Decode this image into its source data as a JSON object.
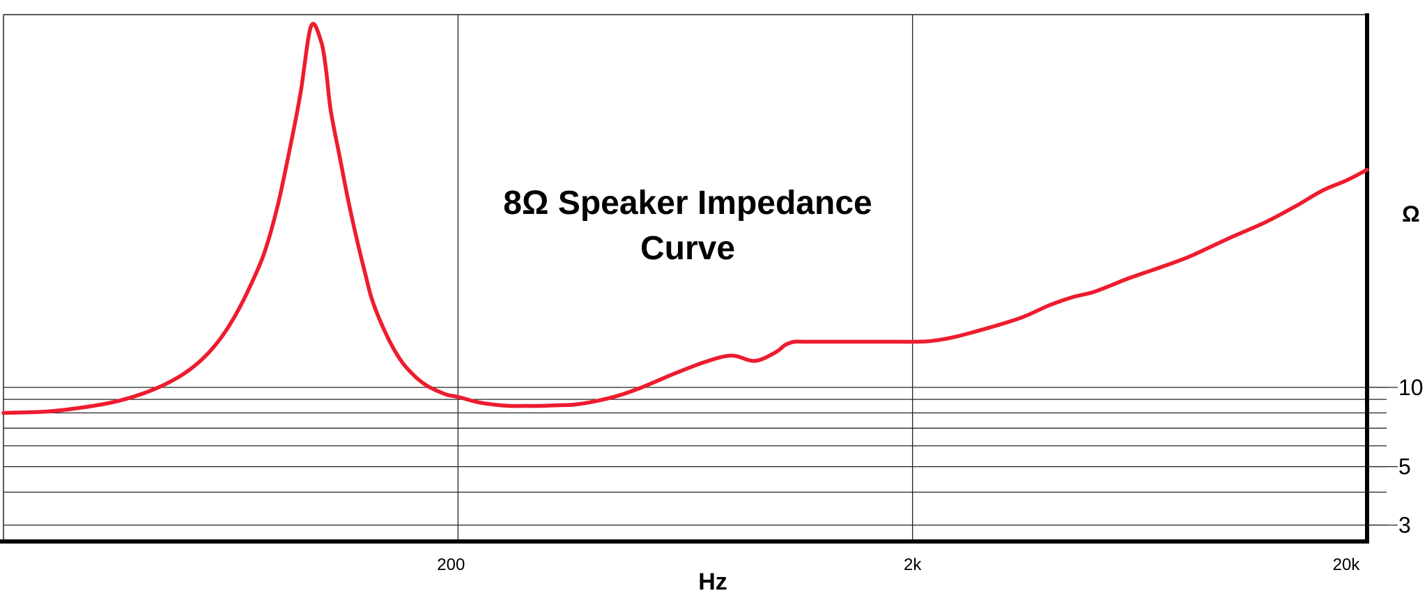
{
  "chart_data": {
    "type": "line",
    "title_lines": [
      "8Ω Speaker Impedance",
      "Curve"
    ],
    "xlabel": "Hz",
    "ylabel": "Ω",
    "x_scale": "log",
    "y_scale": "log",
    "xlim": [
      20,
      20000
    ],
    "ylim": [
      2.6,
      260
    ],
    "x_ticks": [
      {
        "value": 200,
        "label": "200"
      },
      {
        "value": 2000,
        "label": "2k"
      },
      {
        "value": 20000,
        "label": "20k"
      }
    ],
    "y_ticks": [
      {
        "value": 3,
        "label": "3"
      },
      {
        "value": 5,
        "label": "5"
      },
      {
        "value": 10,
        "label": "10"
      }
    ],
    "x_gridlines": [
      200,
      2000
    ],
    "y_gridlines": [
      3,
      4,
      5,
      6,
      7,
      8,
      9,
      10
    ],
    "series": [
      {
        "color": "#ee1c2e",
        "x": [
          20,
          25,
          30,
          35,
          40,
          45,
          50,
          55,
          60,
          65,
          70,
          75,
          80,
          85,
          90,
          95,
          100,
          102.5,
          105,
          110,
          115,
          120,
          125,
          130,
          140,
          150,
          160,
          170,
          180,
          190,
          200,
          220,
          240,
          260,
          280,
          300,
          330,
          360,
          400,
          450,
          500,
          550,
          600,
          700,
          800,
          900,
          1000,
          1050,
          1100,
          1150,
          1200,
          1300,
          1400,
          1500,
          1600,
          1700,
          1800,
          1900,
          2000,
          2200,
          2500,
          3000,
          3500,
          4000,
          4500,
          5000,
          5500,
          6000,
          7000,
          8000,
          9000,
          10000,
          12000,
          14000,
          16000,
          18000,
          20000
        ],
        "y": [
          8.0,
          8.1,
          8.4,
          8.8,
          9.4,
          10.2,
          11.3,
          12.9,
          15.3,
          19.0,
          24.5,
          32.5,
          48.0,
          78.0,
          130.0,
          235.0,
          205.0,
          160.0,
          112.0,
          74.0,
          50.0,
          36.0,
          27.0,
          21.0,
          15.5,
          12.6,
          11.1,
          10.2,
          9.7,
          9.35,
          9.2,
          8.8,
          8.6,
          8.5,
          8.5,
          8.5,
          8.55,
          8.6,
          8.85,
          9.3,
          9.9,
          10.6,
          11.3,
          12.5,
          13.2,
          12.6,
          13.6,
          14.5,
          14.9,
          14.9,
          14.9,
          14.9,
          14.9,
          14.9,
          14.9,
          14.9,
          14.9,
          14.9,
          14.9,
          15.0,
          15.6,
          17.0,
          18.5,
          20.5,
          22.0,
          23.0,
          24.5,
          26.0,
          28.5,
          31.0,
          34.0,
          37.0,
          42.5,
          49.0,
          56.0,
          61.0,
          67.0
        ]
      }
    ]
  }
}
